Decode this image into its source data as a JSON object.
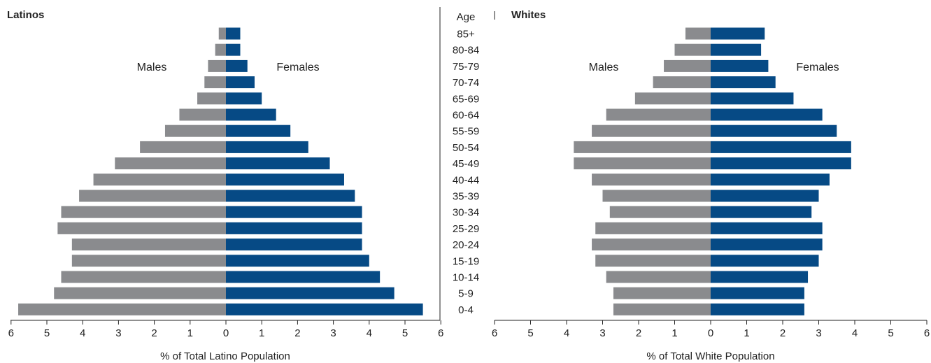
{
  "chart_data": [
    {
      "type": "bar",
      "orientation": "horizontal",
      "title": "Latinos",
      "xlabel": "% of Total Latino Population",
      "xlim": [
        -6,
        6
      ],
      "xticks": [
        "6",
        "5",
        "4",
        "3",
        "2",
        "1",
        "0",
        "1",
        "2",
        "3",
        "4",
        "5",
        "6"
      ],
      "categories": [
        "85+",
        "80-84",
        "75-79",
        "70-74",
        "65-69",
        "60-64",
        "55-59",
        "50-54",
        "45-49",
        "40-44",
        "35-39",
        "30-34",
        "25-29",
        "20-24",
        "15-19",
        "10-14",
        "5-9",
        "0-4"
      ],
      "series": [
        {
          "name": "Males",
          "color": "#8a8b8e",
          "values": [
            0.2,
            0.3,
            0.5,
            0.6,
            0.8,
            1.3,
            1.7,
            2.4,
            3.1,
            3.7,
            4.1,
            4.6,
            4.7,
            4.3,
            4.3,
            4.6,
            4.8,
            5.8
          ]
        },
        {
          "name": "Females",
          "color": "#064a85",
          "values": [
            0.4,
            0.4,
            0.6,
            0.8,
            1.0,
            1.4,
            1.8,
            2.3,
            2.9,
            3.3,
            3.6,
            3.8,
            3.8,
            3.8,
            4.0,
            4.3,
            4.7,
            5.5
          ]
        }
      ],
      "grid": false
    },
    {
      "type": "bar",
      "orientation": "horizontal",
      "title": "Whites",
      "xlabel": "% of Total White Population",
      "xlim": [
        -6,
        6
      ],
      "xticks": [
        "6",
        "5",
        "4",
        "3",
        "2",
        "1",
        "0",
        "1",
        "2",
        "3",
        "4",
        "5",
        "6"
      ],
      "categories": [
        "85+",
        "80-84",
        "75-79",
        "70-74",
        "65-69",
        "60-64",
        "55-59",
        "50-54",
        "45-49",
        "40-44",
        "35-39",
        "30-34",
        "25-29",
        "20-24",
        "15-19",
        "10-14",
        "5-9",
        "0-4"
      ],
      "series": [
        {
          "name": "Males",
          "color": "#8a8b8e",
          "values": [
            0.7,
            1.0,
            1.3,
            1.6,
            2.1,
            2.9,
            3.3,
            3.8,
            3.8,
            3.3,
            3.0,
            2.8,
            3.2,
            3.3,
            3.2,
            2.9,
            2.7,
            2.7
          ]
        },
        {
          "name": "Females",
          "color": "#064a85",
          "values": [
            1.5,
            1.4,
            1.6,
            1.8,
            2.3,
            3.1,
            3.5,
            3.9,
            3.9,
            3.3,
            3.0,
            2.8,
            3.1,
            3.1,
            3.0,
            2.7,
            2.6,
            2.6
          ]
        }
      ],
      "grid": false
    }
  ],
  "age_header": "Age"
}
